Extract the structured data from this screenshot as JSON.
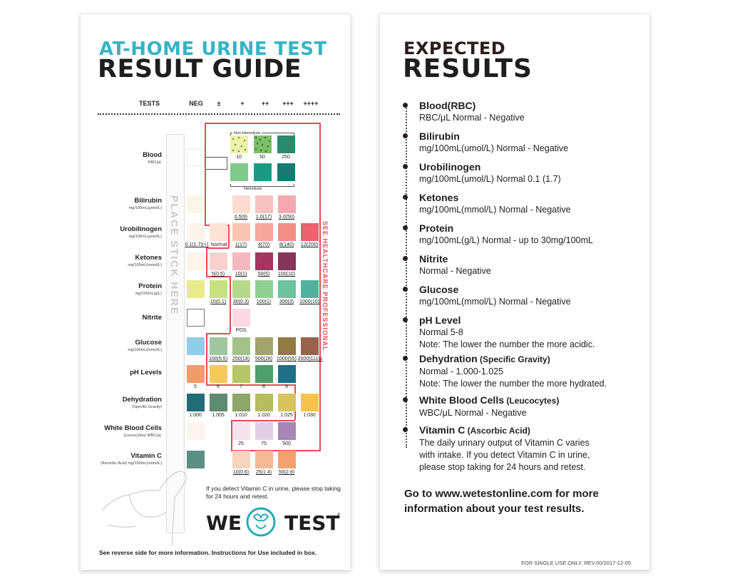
{
  "left": {
    "title_top": "AT-HOME URINE TEST",
    "title_main": "RESULT GUIDE",
    "colors": {
      "title_top": "#34b5c4",
      "title_main": "#1e1e1e",
      "red_line": "#e54b55",
      "logo_teal": "#2aa9b8"
    },
    "headers": {
      "tests": "TESTS",
      "neg": "NEG",
      "trace": "±",
      "plus1": "+",
      "plus2": "++",
      "plus3": "+++",
      "plus4": "++++"
    },
    "tests": [
      {
        "name": "Blood",
        "unit": "RBC/μL"
      },
      {
        "name": "Bilirubin",
        "unit": "mg/100mL(μmol/L)"
      },
      {
        "name": "Urobilinogen",
        "unit": "mg/100mL(μmol/L)"
      },
      {
        "name": "Ketones",
        "unit": "mg/100mL(mmol/L)"
      },
      {
        "name": "Protein",
        "unit": "mg/100mL(g/L)"
      },
      {
        "name": "Nitrite",
        "unit": ""
      },
      {
        "name": "Glucose",
        "unit": "mg/100mL(mmol/L)"
      },
      {
        "name": "pH Levels",
        "unit": ""
      },
      {
        "name": "Dehydration",
        "unit": "(Specific Gravity)"
      },
      {
        "name": "White Blood Cells",
        "unit": "(Leucocytes) WBC/μL"
      },
      {
        "name": "Vitamin C",
        "unit": "(Ascorbic Acid) mg/100mL(mmol/L)"
      }
    ],
    "place_stick": "PLACE STICK HERE",
    "see_hcp": "SEE HEALTHCARE PROFESSIONAL",
    "non_hemolysis": "Non-Hemolysis",
    "hemolysis": "Hemolysis",
    "captions": {
      "blood": [
        "10",
        "50",
        "250"
      ],
      "bilirubin": [
        "0.5(9)",
        "1.0(17)",
        "3.0(50)"
      ],
      "urobilinogen_normal_left": "0.1(1.7)(+)",
      "urobilinogen_normal": "Normal",
      "urobilinogen": [
        "1(17)",
        "4(70)",
        "8(140)",
        "12(200)"
      ],
      "ketones": [
        "5(0.5)",
        "10(1)",
        "50(5)",
        "100(10)"
      ],
      "protein": [
        "10(0.1)",
        "30(0.3)",
        "100(1)",
        "300(3)",
        "1000(10)"
      ],
      "nitrite": "POS.",
      "glucose": [
        "100(5.5)",
        "250(14)",
        "500(28)",
        "1000(55)",
        "2000(111)≤"
      ],
      "ph": [
        "5",
        "6",
        "7",
        "8",
        "9"
      ],
      "sg": [
        "1.000",
        "1.005",
        "1.010",
        "1.020",
        "1.025",
        "1.030"
      ],
      "wbc": [
        "25",
        "75",
        "500"
      ],
      "vitc": [
        "10(0.6)",
        "25(1.4)",
        "50(2.8)"
      ]
    },
    "swatches": {
      "blood_neg": "#f7f6b8",
      "blood_nonhemo": [
        "#eef2a8",
        "#7fbf6a",
        "#2a8a6e"
      ],
      "blood_hemo": [
        "#7fc98a",
        "#1a9a84",
        "#167a72"
      ],
      "bilirubin": [
        "#fdf6e8",
        "#fadcd0",
        "#f7c3c0",
        "#f3a9ae"
      ],
      "urobilinogen": [
        "#fdf3ea",
        "#fde2d6",
        "#fbc4b5",
        "#f7a79b",
        "#f28d88",
        "#e8646f"
      ],
      "ketones": [
        "#fdf4ea",
        "#f9d0cf",
        "#f5b9bd",
        "#a2375e",
        "#86355a"
      ],
      "protein": [
        "#e8ec8a",
        "#c9e07f",
        "#b5d98a",
        "#8fcf95",
        "#6cc39e",
        "#4fb29f"
      ],
      "nitrite": [
        "#ffffff",
        "#fad8e2"
      ],
      "glucose": [
        "#8fcde9",
        "#9ec7a0",
        "#a3c28a",
        "#a3a36c",
        "#927a44",
        "#98644c"
      ],
      "ph": [
        "#f29c6b",
        "#f7c85c",
        "#b6c56a",
        "#4ea06a",
        "#1f6f8b"
      ],
      "sg": [
        "#1f6d78",
        "#5d8a70",
        "#8ea66a",
        "#b6bd5e",
        "#d7c45c",
        "#f7c44a"
      ],
      "wbc": [
        "#fdf4ef",
        "#f5e2ec",
        "#e0cfe4",
        "#a984b6"
      ],
      "vitc": [
        "#5a8f84",
        "#f7d4bd",
        "#f6b996",
        "#f3a26f"
      ]
    },
    "vitc_note": "If you detect Vitamin C in urine, please stop taking for 24 hours and retest.",
    "logo_we": "WE",
    "logo_test": "TEST",
    "logo_reg": "®",
    "footer": "See reverse side for more information. Instructions for Use included in box."
  },
  "right": {
    "title_top": "EXPECTED",
    "title_main": "RESULTS",
    "colors": {
      "title_top": "#2b1d1d",
      "title_main": "#1e1e1e"
    },
    "entries": [
      {
        "title": "Blood(RBC)",
        "sub": "",
        "lines": [
          "RBC/μL Normal - Negative"
        ]
      },
      {
        "title": "Bilirubin",
        "sub": "",
        "lines": [
          "mg/100mL(umol/L) Normal - Negative"
        ]
      },
      {
        "title": "Urobilinogen",
        "sub": "",
        "lines": [
          "mg/100mL(umol/L) Normal 0.1 (1.7)"
        ]
      },
      {
        "title": "Ketones",
        "sub": "",
        "lines": [
          "mg/100mL(mmol/L) Normal - Negative"
        ]
      },
      {
        "title": "Protein",
        "sub": "",
        "lines": [
          "mg/100mL(g/L) Normal - up to 30mg/100mL"
        ]
      },
      {
        "title": "Nitrite",
        "sub": "",
        "lines": [
          "Normal - Negative"
        ]
      },
      {
        "title": "Glucose",
        "sub": "",
        "lines": [
          "mg/100mL(mmol/L) Normal - Negative"
        ]
      },
      {
        "title": "pH Level",
        "sub": "",
        "lines": [
          "Normal 5-8",
          "Note: The lower the number the more acidic."
        ]
      },
      {
        "title": "Dehydration",
        "sub": " (Specific Gravity)",
        "lines": [
          "Normal - 1.000-1.025",
          "Note: The lower the number the more hydrated."
        ]
      },
      {
        "title": "White Blood Cells",
        "sub": " (Leucocytes)",
        "lines": [
          "WBC/μL Normal - Negative"
        ]
      },
      {
        "title": "Vitamin C",
        "sub": " (Ascorbic Acid)",
        "lines": [
          "The daily urinary output of Vitamin C varies",
          "with intake. If you detect Vitamin C in urine,",
          "please stop taking for 24 hours and retest."
        ]
      }
    ],
    "goto_pre": "Go to ",
    "goto_url": "www.wetestonline.com",
    "goto_post": " for more information about your test results.",
    "footer": "FOR SINGLE USE ONLY. REV.00/2017-12-05"
  }
}
